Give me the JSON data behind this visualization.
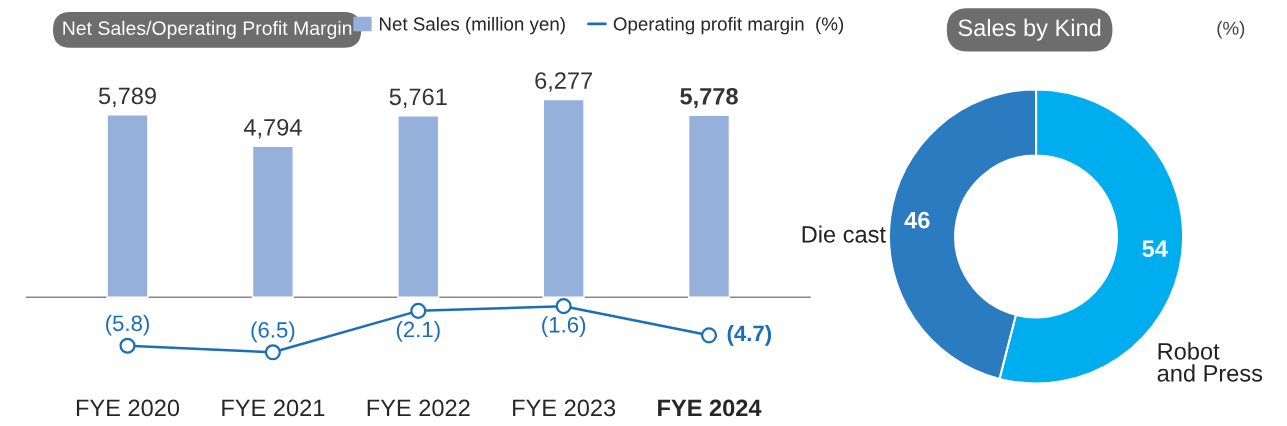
{
  "chart_data": [
    {
      "type": "bar",
      "title": "Net Sales/Operating Profit Margin",
      "categories": [
        "FYE 2020",
        "FYE 2021",
        "FYE 2022",
        "FYE 2023",
        "FYE 2024"
      ],
      "tick_labels": "x",
      "legend": "top",
      "grid": false,
      "series": [
        {
          "name": "Net Sales (million yen)",
          "color": "#95b0db",
          "values": [
            5789,
            4794,
            5761,
            6277,
            5778
          ],
          "value_labels": [
            "5,789",
            "4,794",
            "5,761",
            "6,277",
            "5,778"
          ]
        }
      ]
    },
    {
      "type": "line",
      "categories": [
        null,
        null,
        null,
        null,
        null
      ],
      "tick_labels": false,
      "legend": "top",
      "grid": false,
      "marker": "circle",
      "series": [
        {
          "name": "Operating profit margin  (%)",
          "color": "#1a6fb8",
          "values": [
            -5.8,
            -6.5,
            -2.1,
            -1.6,
            -4.7
          ],
          "value_labels": [
            "(5.8)",
            "(6.5)",
            "(2.1)",
            "(1.6)",
            "(4.7)"
          ]
        }
      ]
    },
    {
      "type": "donut",
      "title": "Sales by Kind",
      "subtitle": "(%)",
      "categories": [
        "Robot\nand Press",
        "Die cast"
      ],
      "values": [
        54,
        46
      ],
      "colors": [
        "#00aeef",
        "#2b7bc0"
      ],
      "data_labels": true
    }
  ]
}
